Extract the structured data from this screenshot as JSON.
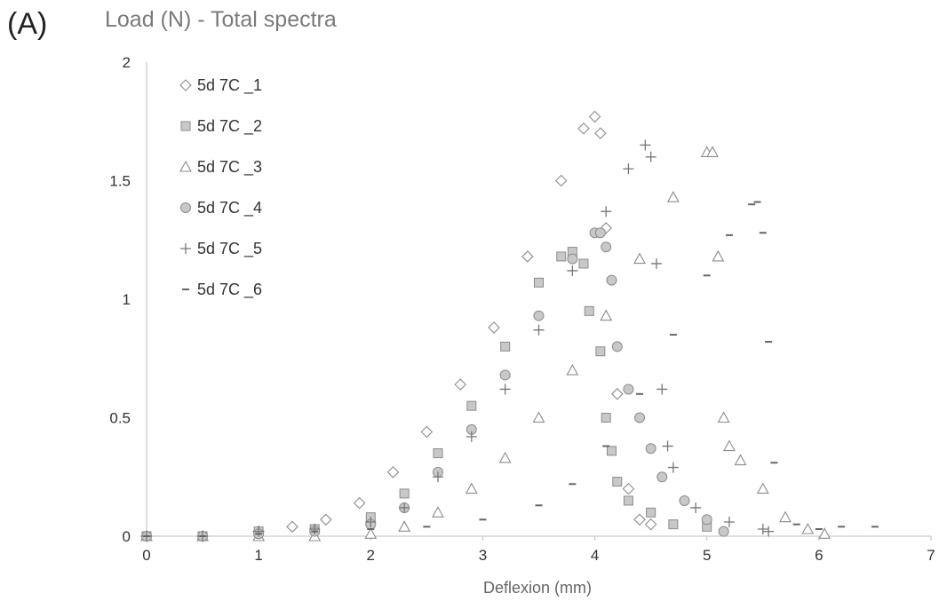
{
  "panel_label": "(A)",
  "chart_data": {
    "type": "scatter",
    "title": "Load (N) - Total spectra",
    "xlabel": "Deflexion (mm)",
    "ylabel": "",
    "xlim": [
      0,
      7
    ],
    "ylim": [
      0,
      2
    ],
    "x_ticks": [
      "0",
      "1",
      "2",
      "3",
      "4",
      "5",
      "6",
      "7"
    ],
    "y_ticks": [
      "0",
      "0.5",
      "1",
      "1.5",
      "2"
    ],
    "grid": false,
    "legend_position": "top-left",
    "series": [
      {
        "name": "5d 7C _1",
        "marker": "diamond",
        "x": [
          0,
          0.5,
          1.0,
          1.3,
          1.6,
          1.9,
          2.2,
          2.5,
          2.8,
          3.1,
          3.4,
          3.7,
          3.9,
          4.0,
          4.05,
          4.1,
          4.2,
          4.3,
          4.4,
          4.5
        ],
        "y": [
          0,
          0,
          0.02,
          0.04,
          0.07,
          0.14,
          0.27,
          0.44,
          0.64,
          0.88,
          1.18,
          1.5,
          1.72,
          1.77,
          1.7,
          1.3,
          0.6,
          0.2,
          0.07,
          0.05
        ]
      },
      {
        "name": "5d 7C _2",
        "marker": "square",
        "x": [
          0,
          0.5,
          1.0,
          1.5,
          2.0,
          2.3,
          2.6,
          2.9,
          3.2,
          3.5,
          3.7,
          3.8,
          3.9,
          3.95,
          4.05,
          4.1,
          4.15,
          4.2,
          4.3,
          4.5,
          4.7,
          5.0
        ],
        "y": [
          0,
          0,
          0.02,
          0.03,
          0.08,
          0.18,
          0.35,
          0.55,
          0.8,
          1.07,
          1.18,
          1.2,
          1.15,
          0.95,
          0.78,
          0.5,
          0.36,
          0.23,
          0.15,
          0.1,
          0.05,
          0.04
        ]
      },
      {
        "name": "5d 7C _3",
        "marker": "triangle",
        "x": [
          0,
          0.5,
          1.0,
          1.5,
          2.0,
          2.3,
          2.6,
          2.9,
          3.2,
          3.5,
          3.8,
          4.1,
          4.4,
          4.7,
          5.0,
          5.05,
          5.1,
          5.15,
          5.2,
          5.3,
          5.5,
          5.7,
          5.9,
          6.05
        ],
        "y": [
          0,
          0,
          0,
          0,
          0.01,
          0.04,
          0.1,
          0.2,
          0.33,
          0.5,
          0.7,
          0.93,
          1.17,
          1.43,
          1.62,
          1.62,
          1.18,
          0.5,
          0.38,
          0.32,
          0.2,
          0.08,
          0.03,
          0.01
        ]
      },
      {
        "name": "5d 7C _4",
        "marker": "circle",
        "x": [
          0,
          0.5,
          1.0,
          1.5,
          2.0,
          2.3,
          2.6,
          2.9,
          3.2,
          3.5,
          3.8,
          4.0,
          4.05,
          4.1,
          4.15,
          4.2,
          4.3,
          4.4,
          4.5,
          4.6,
          4.8,
          5.0,
          5.15
        ],
        "y": [
          0,
          0,
          0.01,
          0.02,
          0.05,
          0.12,
          0.27,
          0.45,
          0.68,
          0.93,
          1.17,
          1.28,
          1.28,
          1.22,
          1.08,
          0.8,
          0.62,
          0.5,
          0.37,
          0.25,
          0.15,
          0.07,
          0.02
        ]
      },
      {
        "name": "5d 7C _5",
        "marker": "plus",
        "x": [
          0,
          0.5,
          1.0,
          1.5,
          2.0,
          2.3,
          2.6,
          2.9,
          3.2,
          3.5,
          3.8,
          4.1,
          4.3,
          4.45,
          4.5,
          4.55,
          4.6,
          4.65,
          4.7,
          4.9,
          5.2,
          5.5,
          5.55
        ],
        "y": [
          0,
          0,
          0.02,
          0.03,
          0.06,
          0.12,
          0.25,
          0.42,
          0.62,
          0.87,
          1.12,
          1.37,
          1.55,
          1.65,
          1.6,
          1.15,
          0.62,
          0.38,
          0.29,
          0.12,
          0.06,
          0.03,
          0.02
        ]
      },
      {
        "name": "5d 7C _6",
        "marker": "dash",
        "x": [
          0,
          0.5,
          1.0,
          1.5,
          2.0,
          2.5,
          3.0,
          3.5,
          3.8,
          4.1,
          4.4,
          4.7,
          5.0,
          5.2,
          5.4,
          5.45,
          5.5,
          5.55,
          5.6,
          5.8,
          6.0,
          6.2,
          6.5
        ],
        "y": [
          0,
          0,
          0.01,
          0.02,
          0.03,
          0.04,
          0.07,
          0.13,
          0.22,
          0.38,
          0.6,
          0.85,
          1.1,
          1.27,
          1.4,
          1.41,
          1.28,
          0.82,
          0.31,
          0.05,
          0.03,
          0.04,
          0.04
        ]
      }
    ]
  }
}
